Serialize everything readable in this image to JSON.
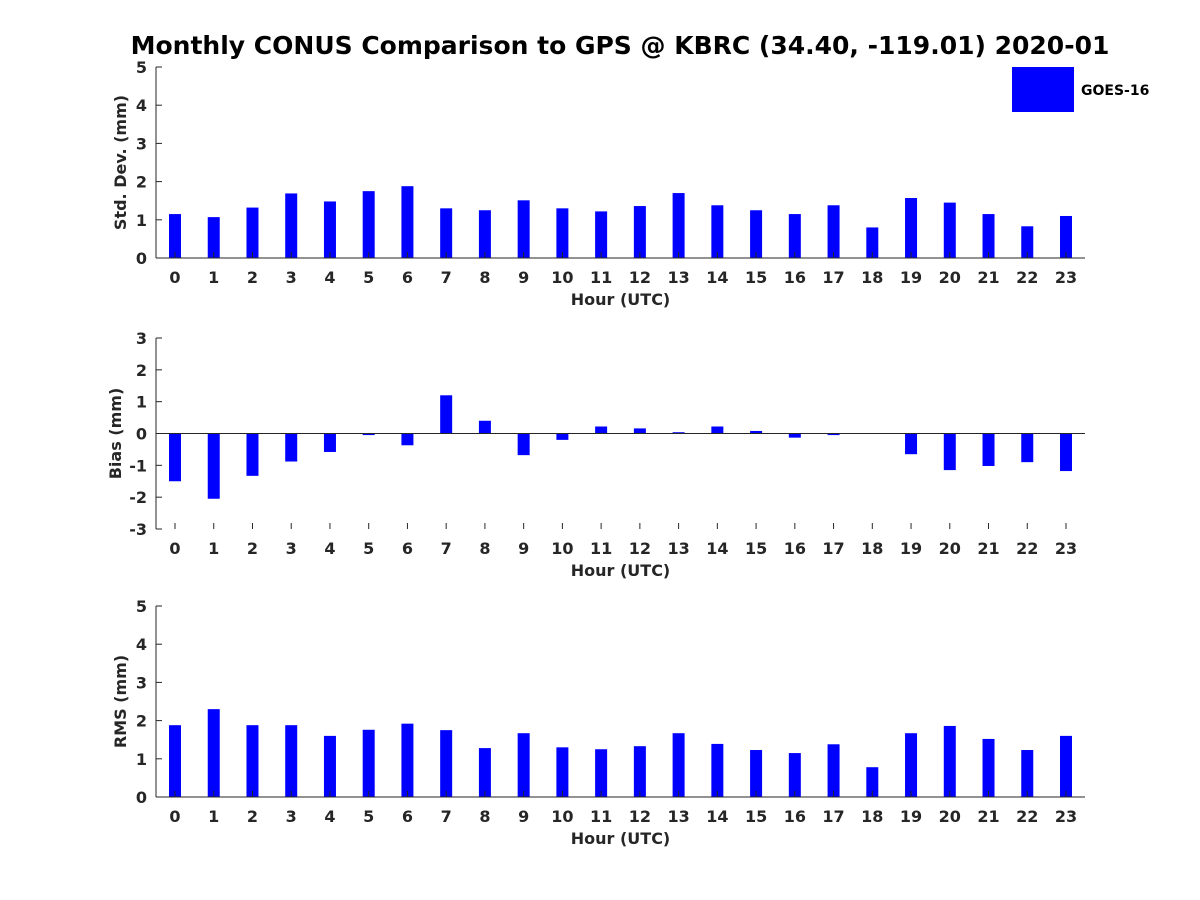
{
  "title": "Monthly CONUS Comparison to GPS @ KBRC (34.40, -119.01) 2020-01",
  "colors": {
    "bar": "#0000ff",
    "axis": "#262626",
    "background": "#ffffff"
  },
  "legend": {
    "label": "GOES-16",
    "position": "top-right"
  },
  "chart_data": [
    {
      "type": "bar",
      "name": "std-dev",
      "xlabel": "Hour (UTC)",
      "ylabel": "Std. Dev. (mm)",
      "ylim": [
        0,
        5
      ],
      "yticks": [
        0,
        1,
        2,
        3,
        4,
        5
      ],
      "categories": [
        "0",
        "1",
        "2",
        "3",
        "4",
        "5",
        "6",
        "7",
        "8",
        "9",
        "10",
        "11",
        "12",
        "13",
        "14",
        "15",
        "16",
        "17",
        "18",
        "19",
        "20",
        "21",
        "22",
        "23"
      ],
      "series": [
        {
          "name": "GOES-16",
          "values": [
            1.15,
            1.07,
            1.32,
            1.69,
            1.48,
            1.75,
            1.88,
            1.3,
            1.25,
            1.51,
            1.3,
            1.22,
            1.36,
            1.7,
            1.38,
            1.25,
            1.15,
            1.38,
            0.8,
            1.57,
            1.45,
            1.15,
            0.83,
            1.1
          ]
        }
      ]
    },
    {
      "type": "bar",
      "name": "bias",
      "xlabel": "Hour (UTC)",
      "ylabel": "Bias (mm)",
      "ylim": [
        -3,
        3
      ],
      "yticks": [
        -3,
        -2,
        -1,
        0,
        1,
        2,
        3
      ],
      "categories": [
        "0",
        "1",
        "2",
        "3",
        "4",
        "5",
        "6",
        "7",
        "8",
        "9",
        "10",
        "11",
        "12",
        "13",
        "14",
        "15",
        "16",
        "17",
        "18",
        "19",
        "20",
        "21",
        "22",
        "23"
      ],
      "series": [
        {
          "name": "GOES-16",
          "values": [
            -1.5,
            -2.05,
            -1.33,
            -0.88,
            -0.58,
            -0.05,
            -0.37,
            1.2,
            0.4,
            -0.68,
            -0.2,
            0.22,
            0.16,
            0.04,
            0.22,
            0.08,
            -0.13,
            -0.05,
            0.0,
            -0.65,
            -1.15,
            -1.02,
            -0.9,
            -1.18
          ]
        }
      ]
    },
    {
      "type": "bar",
      "name": "rms",
      "xlabel": "Hour (UTC)",
      "ylabel": "RMS (mm)",
      "ylim": [
        0,
        5
      ],
      "yticks": [
        0,
        1,
        2,
        3,
        4,
        5
      ],
      "categories": [
        "0",
        "1",
        "2",
        "3",
        "4",
        "5",
        "6",
        "7",
        "8",
        "9",
        "10",
        "11",
        "12",
        "13",
        "14",
        "15",
        "16",
        "17",
        "18",
        "19",
        "20",
        "21",
        "22",
        "23"
      ],
      "series": [
        {
          "name": "GOES-16",
          "values": [
            1.88,
            2.3,
            1.88,
            1.88,
            1.6,
            1.76,
            1.92,
            1.75,
            1.28,
            1.67,
            1.3,
            1.25,
            1.33,
            1.67,
            1.39,
            1.23,
            1.15,
            1.38,
            0.78,
            1.67,
            1.86,
            1.52,
            1.23,
            1.6
          ]
        }
      ]
    }
  ]
}
